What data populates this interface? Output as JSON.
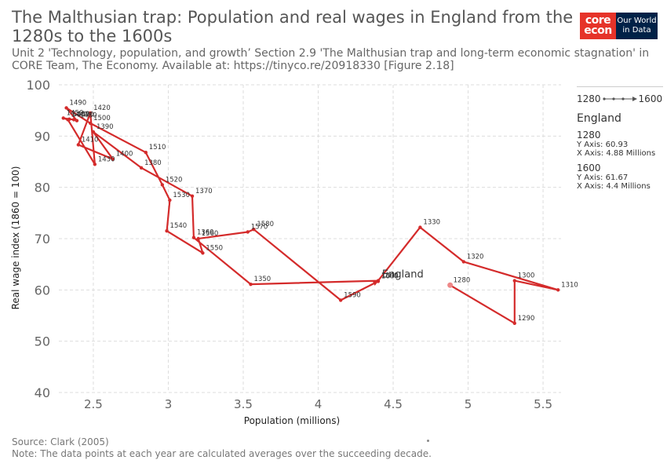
{
  "title": "The Malthusian trap: Population and real wages in England from the 1280s to the 1600s",
  "subtitle": "Unit 2 'Technology, population, and growth’ Section 2.9 'The Malthusian trap and long-term economic stagnation' in CORE Team, The Economy. Available at: https://tinyco.re/20918330 [Figure 2.18]",
  "logo": {
    "core_top": "core",
    "core_bottom": "econ",
    "owid_line1": "Our World",
    "owid_line2": "in Data"
  },
  "legend": {
    "range_start": "1280",
    "range_end": "1600",
    "entity": "England",
    "items": [
      {
        "year": "1280",
        "y_text": "Y Axis: 60.93",
        "x_text": "X Axis: 4.88 Millions"
      },
      {
        "year": "1600",
        "y_text": "Y Axis: 61.67",
        "x_text": "X Axis: 4.4 Millions"
      }
    ]
  },
  "footer": {
    "source": "Source: Clark (2005)",
    "note": "Note: The data points at each year are calculated averages over the succeeding decade."
  },
  "colors": {
    "line": "#d42b2b",
    "grid": "#dddddd",
    "axis_text": "#666666"
  },
  "chart_data": {
    "type": "line",
    "xlabel": "Population (millions)",
    "ylabel": "Real wage index (1860 = 100)",
    "xlim": [
      2.27,
      5.62
    ],
    "ylim": [
      40,
      100
    ],
    "x_ticks": [
      "2.5",
      "3",
      "3.5",
      "4",
      "4.5",
      "5",
      "5.5"
    ],
    "y_ticks": [
      "40",
      "50",
      "60",
      "70",
      "80",
      "90",
      "100"
    ],
    "grid": true,
    "series_label": "England",
    "points": [
      {
        "year": "1280",
        "x": 4.88,
        "y": 60.93
      },
      {
        "year": "1290",
        "x": 5.31,
        "y": 53.5
      },
      {
        "year": "1300",
        "x": 5.31,
        "y": 61.8
      },
      {
        "year": "1310",
        "x": 5.6,
        "y": 60.0
      },
      {
        "year": "1320",
        "x": 4.97,
        "y": 65.5
      },
      {
        "year": "1330",
        "x": 4.68,
        "y": 72.2
      },
      {
        "year": "1340",
        "x": 4.4,
        "y": 61.8
      },
      {
        "year": "1350",
        "x": 3.55,
        "y": 61.1
      },
      {
        "year": "1360",
        "x": 3.17,
        "y": 70.2
      },
      {
        "year": "1370",
        "x": 3.16,
        "y": 78.3
      },
      {
        "year": "1380",
        "x": 2.82,
        "y": 83.8
      },
      {
        "year": "1390",
        "x": 2.5,
        "y": 90.8
      },
      {
        "year": "1400",
        "x": 2.63,
        "y": 85.5
      },
      {
        "year": "1410",
        "x": 2.4,
        "y": 88.3
      },
      {
        "year": "1420",
        "x": 2.48,
        "y": 94.5
      },
      {
        "year": "1430",
        "x": 2.51,
        "y": 84.5
      },
      {
        "year": "1440",
        "x": 2.33,
        "y": 93.2
      },
      {
        "year": "1450",
        "x": 2.3,
        "y": 93.5
      },
      {
        "year": "1460",
        "x": 2.34,
        "y": 93.3
      },
      {
        "year": "1470",
        "x": 2.37,
        "y": 93.2
      },
      {
        "year": "1480",
        "x": 2.39,
        "y": 93.0
      },
      {
        "year": "1490",
        "x": 2.32,
        "y": 95.5
      },
      {
        "year": "1500",
        "x": 2.48,
        "y": 92.5
      },
      {
        "year": "1510",
        "x": 2.85,
        "y": 86.8
      },
      {
        "year": "1520",
        "x": 2.96,
        "y": 80.5
      },
      {
        "year": "1530",
        "x": 3.01,
        "y": 77.5
      },
      {
        "year": "1540",
        "x": 2.99,
        "y": 71.5
      },
      {
        "year": "1550",
        "x": 3.23,
        "y": 67.2
      },
      {
        "year": "1560",
        "x": 3.2,
        "y": 70.0
      },
      {
        "year": "1570",
        "x": 3.53,
        "y": 71.3
      },
      {
        "year": "1580",
        "x": 3.57,
        "y": 71.8
      },
      {
        "year": "1590",
        "x": 4.15,
        "y": 58.0
      },
      {
        "year": "1600",
        "x": 4.4,
        "y": 61.67
      }
    ]
  }
}
